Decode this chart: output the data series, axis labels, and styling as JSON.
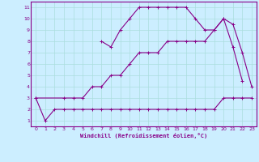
{
  "xlabel": "Windchill (Refroidissement éolien,°C)",
  "bg_color": "#cceeff",
  "grid_color": "#aadddd",
  "line_color": "#880088",
  "xlim": [
    -0.5,
    23.5
  ],
  "ylim": [
    0.5,
    11.5
  ],
  "xticks": [
    0,
    1,
    2,
    3,
    4,
    5,
    6,
    7,
    8,
    9,
    10,
    11,
    12,
    13,
    14,
    15,
    16,
    17,
    18,
    19,
    20,
    21,
    22,
    23
  ],
  "yticks": [
    1,
    2,
    3,
    4,
    5,
    6,
    7,
    8,
    9,
    10,
    11
  ],
  "series1_x": [
    0,
    1,
    2,
    3,
    4,
    5,
    6,
    7,
    8,
    9,
    10,
    11,
    12,
    13,
    14,
    15,
    16,
    17,
    18,
    19,
    20,
    21,
    22,
    23
  ],
  "series1_y": [
    3,
    1,
    2,
    2,
    2,
    2,
    2,
    2,
    2,
    2,
    2,
    2,
    2,
    2,
    2,
    2,
    2,
    2,
    2,
    2,
    3,
    3,
    3,
    3
  ],
  "series2_x": [
    0,
    3,
    4,
    5,
    6,
    7,
    8,
    9,
    10,
    11,
    12,
    13,
    14,
    15,
    16,
    17,
    18,
    19,
    20,
    21,
    22,
    23
  ],
  "series2_y": [
    3,
    3,
    3,
    3,
    4,
    4,
    5,
    5,
    6,
    7,
    7,
    7,
    8,
    8,
    8,
    8,
    8,
    9,
    10,
    9.5,
    7,
    4
  ],
  "series3_x": [
    7,
    8,
    9,
    10,
    11,
    12,
    13,
    14,
    15,
    16,
    17,
    18,
    19,
    20,
    21,
    22
  ],
  "series3_y": [
    8,
    7.5,
    9,
    10,
    11,
    11,
    11,
    11,
    11,
    11,
    10,
    9,
    9,
    10,
    7.5,
    4.5
  ]
}
